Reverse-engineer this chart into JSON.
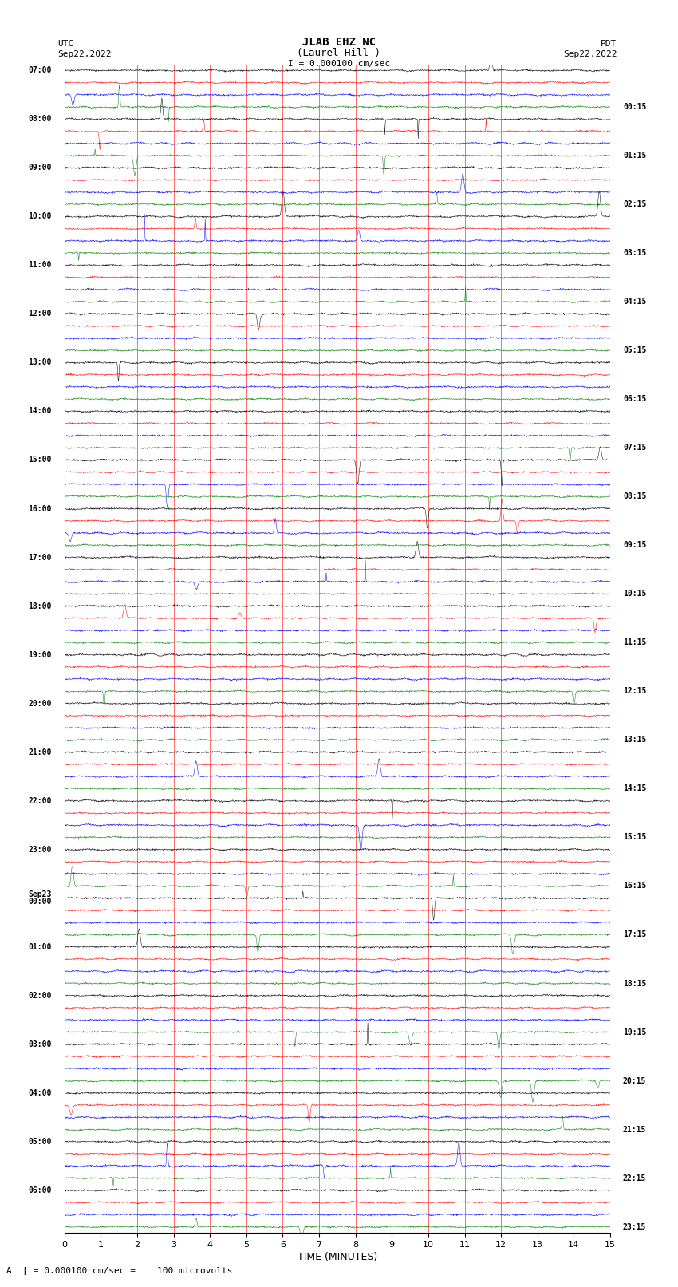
{
  "title_line1": "JLAB EHZ NC",
  "title_line2": "(Laurel Hill )",
  "title_scale": "I = 0.000100 cm/sec",
  "left_label_utc": "UTC",
  "left_date": "Sep22,2022",
  "right_label_pdt": "PDT",
  "right_date": "Sep22,2022",
  "bottom_label": "TIME (MINUTES)",
  "bottom_note": "A  [ = 0.000100 cm/sec =    100 microvolts",
  "left_times": [
    "07:00",
    "08:00",
    "09:00",
    "10:00",
    "11:00",
    "12:00",
    "13:00",
    "14:00",
    "15:00",
    "16:00",
    "17:00",
    "18:00",
    "19:00",
    "20:00",
    "21:00",
    "22:00",
    "23:00",
    "Sep23\n00:00",
    "01:00",
    "02:00",
    "03:00",
    "04:00",
    "05:00",
    "06:00"
  ],
  "right_times": [
    "00:15",
    "01:15",
    "02:15",
    "03:15",
    "04:15",
    "05:15",
    "06:15",
    "07:15",
    "08:15",
    "09:15",
    "10:15",
    "11:15",
    "12:15",
    "13:15",
    "14:15",
    "15:15",
    "16:15",
    "17:15",
    "18:15",
    "19:15",
    "20:15",
    "21:15",
    "22:15",
    "23:15"
  ],
  "colors": [
    "black",
    "red",
    "blue",
    "green"
  ],
  "n_points": 1800,
  "x_ticks": [
    0,
    1,
    2,
    3,
    4,
    5,
    6,
    7,
    8,
    9,
    10,
    11,
    12,
    13,
    14,
    15
  ],
  "background_color": "white",
  "trace_amplitude": 0.28,
  "fig_width": 8.5,
  "fig_height": 16.13
}
